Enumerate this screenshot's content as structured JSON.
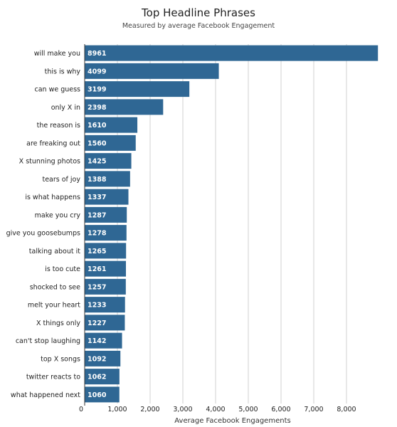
{
  "chart_data": {
    "type": "bar",
    "orientation": "horizontal",
    "title": "Top Headline Phrases",
    "subtitle": "Measured by average Facebook Engagement",
    "xlabel": "Average Facebook Engagements",
    "ylabel": "",
    "xlim": [
      0,
      9000
    ],
    "x_ticks": [
      0,
      1000,
      2000,
      3000,
      4000,
      5000,
      6000,
      7000,
      8000
    ],
    "x_tick_labels": [
      "0",
      "1,000",
      "2,000",
      "3,000",
      "4,000",
      "5,000",
      "6,000",
      "7,000",
      "8,000"
    ],
    "grid": "vertical",
    "legend": "none",
    "bar_color": "#2f6794",
    "categories": [
      "will make you",
      "this is why",
      "can we guess",
      "only X in",
      "the reason is",
      "are freaking out",
      "X stunning photos",
      "tears of joy",
      "is what happens",
      "make you cry",
      "give you goosebumps",
      "talking about it",
      "is too cute",
      "shocked to see",
      "melt your heart",
      "X things only",
      "can't stop laughing",
      "top X songs",
      "twitter reacts to",
      "what happened next"
    ],
    "values": [
      8961,
      4099,
      3199,
      2398,
      1610,
      1560,
      1425,
      1388,
      1337,
      1287,
      1278,
      1265,
      1261,
      1257,
      1233,
      1227,
      1142,
      1092,
      1062,
      1060
    ],
    "data_labels": [
      "8961",
      "4099",
      "3199",
      "2398",
      "1610",
      "1560",
      "1425",
      "1388",
      "1337",
      "1287",
      "1278",
      "1265",
      "1261",
      "1257",
      "1233",
      "1227",
      "1142",
      "1092",
      "1062",
      "1060"
    ]
  }
}
